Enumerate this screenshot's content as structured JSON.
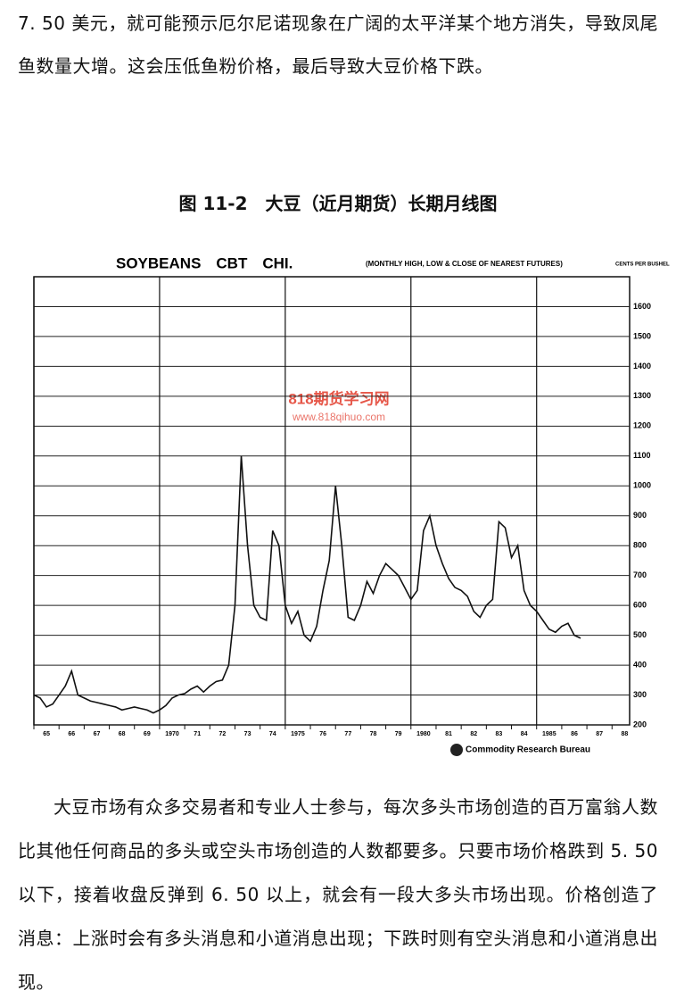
{
  "paragraphs": [
    "7. 50 美元，就可能预示厄尔尼诺现象在广阔的太平洋某个地方消失，导致凤尾鱼数量大增。这会压低鱼粉价格，最后导致大豆价格下跌。",
    "大豆市场有众多交易者和专业人士参与，每次多头市场创造的百万富翁人数比其他任何商品的多头或空头市场创造的人数都要多。只要市场价格跌到 5. 50 以下，接着收盘反弹到 6. 50 以上，就会有一段大多头市场出现。价格创造了消息：上涨时会有多头消息和小道消息出现；下跌时则有空头消息和小道消息出现。"
  ],
  "figure_caption": "图 11-2　大豆（近月期货）长期月线图",
  "watermark": {
    "title": "818期货学习网",
    "url": "www.818qihuo.com"
  },
  "chart_data": {
    "type": "line",
    "title": "SOYBEANS　CBT　CHI.",
    "subtitle": "(MONTHLY HIGH, LOW & CLOSE OF NEAREST FUTURES)",
    "y_label": "CENTS PER BUSHEL",
    "source": "Commodity Research Bureau",
    "x": [
      1965,
      1965.25,
      1965.5,
      1965.75,
      1966,
      1966.25,
      1966.5,
      1966.75,
      1967,
      1967.25,
      1967.5,
      1967.75,
      1968,
      1968.25,
      1968.5,
      1968.75,
      1969,
      1969.25,
      1969.5,
      1969.75,
      1970,
      1970.25,
      1970.5,
      1970.75,
      1971,
      1971.25,
      1971.5,
      1971.75,
      1972,
      1972.25,
      1972.5,
      1972.75,
      1973,
      1973.25,
      1973.5,
      1973.75,
      1974,
      1974.25,
      1974.5,
      1974.75,
      1975,
      1975.25,
      1975.5,
      1975.75,
      1976,
      1976.25,
      1976.5,
      1976.75,
      1977,
      1977.25,
      1977.5,
      1977.75,
      1978,
      1978.25,
      1978.5,
      1978.75,
      1979,
      1979.25,
      1979.5,
      1979.75,
      1980,
      1980.25,
      1980.5,
      1980.75,
      1981,
      1981.25,
      1981.5,
      1981.75,
      1982,
      1982.25,
      1982.5,
      1982.75,
      1983,
      1983.25,
      1983.5,
      1983.75,
      1984,
      1984.25,
      1984.5,
      1984.75,
      1985,
      1985.25,
      1985.5,
      1985.75,
      1986,
      1986.25,
      1986.5,
      1986.75
    ],
    "series": [
      {
        "name": "Soybeans",
        "color": "#111111",
        "values": [
          300,
          290,
          260,
          270,
          300,
          330,
          380,
          300,
          290,
          280,
          275,
          270,
          265,
          260,
          250,
          255,
          260,
          255,
          250,
          240,
          250,
          265,
          290,
          300,
          305,
          320,
          330,
          310,
          330,
          345,
          350,
          400,
          600,
          1100,
          800,
          600,
          560,
          550,
          850,
          800,
          600,
          540,
          580,
          500,
          480,
          530,
          650,
          750,
          1000,
          800,
          560,
          550,
          600,
          680,
          640,
          700,
          740,
          720,
          700,
          660,
          620,
          650,
          850,
          900,
          800,
          740,
          690,
          660,
          650,
          630,
          580,
          560,
          600,
          620,
          880,
          860,
          760,
          800,
          650,
          600,
          580,
          550,
          520,
          510,
          530,
          540,
          500,
          490
        ]
      }
    ],
    "xlim": [
      1965,
      1988.7
    ],
    "ylim": [
      200,
      1700
    ],
    "xticks": [
      {
        "value": 1965,
        "label": "65"
      },
      {
        "value": 1966,
        "label": "66"
      },
      {
        "value": 1967,
        "label": "67"
      },
      {
        "value": 1968,
        "label": "68"
      },
      {
        "value": 1969,
        "label": "69"
      },
      {
        "value": 1970,
        "label": "1970"
      },
      {
        "value": 1971,
        "label": "71"
      },
      {
        "value": 1972,
        "label": "72"
      },
      {
        "value": 1973,
        "label": "73"
      },
      {
        "value": 1974,
        "label": "74"
      },
      1975,
      {
        "value": 1976,
        "label": "76"
      },
      {
        "value": 1977,
        "label": "77"
      },
      {
        "value": 1978,
        "label": "78"
      },
      {
        "value": 1979,
        "label": "79"
      },
      1980,
      {
        "value": 1981,
        "label": "81"
      },
      {
        "value": 1982,
        "label": "82"
      },
      {
        "value": 1983,
        "label": "83"
      },
      {
        "value": 1984,
        "label": "84"
      },
      1985,
      {
        "value": 1986,
        "label": "86"
      },
      {
        "value": 1987,
        "label": "87"
      },
      {
        "value": 1988,
        "label": "88"
      }
    ],
    "yticks": [
      200,
      300,
      400,
      500,
      600,
      700,
      800,
      900,
      1000,
      1100,
      1200,
      1300,
      1400,
      1500,
      1600
    ],
    "grid": true
  }
}
